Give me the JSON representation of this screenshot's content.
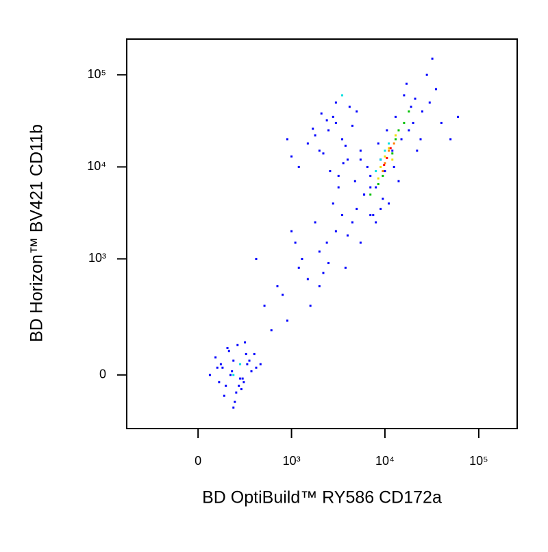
{
  "chart_data": {
    "type": "scatter",
    "xlabel": "BD OptiBuild™ RY586 CD172a",
    "ylabel": "BD Horizon™ BV421 CD11b",
    "xscale": "biexponential",
    "yscale": "biexponential",
    "xlim": [
      -570,
      256800
    ],
    "ylim": [
      -196,
      244700
    ],
    "xticks": [
      0,
      {
        "value": 1000,
        "label": "10³"
      },
      {
        "value": 10000,
        "label": "10⁴"
      },
      {
        "value": 100000,
        "label": "10⁵"
      }
    ],
    "yticks": [
      0,
      {
        "value": 1000,
        "label": "10³"
      },
      {
        "value": 10000,
        "label": "10⁴"
      },
      {
        "value": 100000,
        "label": "10⁵"
      }
    ],
    "series": [
      {
        "color": "#0000ff",
        "x": [
          100,
          150,
          200,
          250,
          300,
          180,
          220,
          120,
          350,
          280,
          90,
          160,
          260,
          310,
          400,
          140,
          230,
          190,
          270,
          330,
          60,
          210,
          170,
          240,
          380,
          130,
          290,
          200,
          450,
          110,
          500,
          700,
          900,
          1200,
          1500,
          2000,
          2500,
          3000,
          800,
          1100,
          1800,
          2200,
          3500,
          4000,
          600,
          1300,
          2800,
          4500,
          5000,
          6000,
          1600,
          2400,
          3200,
          7000,
          400,
          1000,
          2000,
          3800,
          5500,
          8000,
          2000,
          2500,
          3000,
          3500,
          4000,
          1500,
          1200,
          2800,
          3200,
          4500,
          5000,
          1800,
          2200,
          2600,
          3800,
          4200,
          1000,
          900,
          3000,
          2400,
          5500,
          1700,
          3600,
          2100,
          4800,
          6000,
          7000,
          8000,
          9000,
          10000,
          12000,
          15000,
          18000,
          20000,
          25000,
          30000,
          40000,
          50000,
          7500,
          11000,
          14000,
          9500,
          13000,
          16000,
          22000,
          8500,
          6500,
          17000,
          28000,
          35000,
          60000,
          5500,
          10500,
          19000,
          24000,
          12500,
          9000,
          7000,
          21000,
          32000
        ],
        "y": [
          20,
          -30,
          40,
          -10,
          60,
          0,
          -50,
          30,
          10,
          -20,
          50,
          80,
          -40,
          30,
          20,
          -60,
          90,
          10,
          -10,
          40,
          0,
          -80,
          70,
          -30,
          60,
          20,
          100,
          -100,
          30,
          -20,
          300,
          500,
          200,
          800,
          600,
          1200,
          900,
          2000,
          400,
          1500,
          2500,
          700,
          3000,
          1800,
          150,
          1000,
          4000,
          2500,
          3500,
          5000,
          300,
          1500,
          6000,
          3000,
          1000,
          2000,
          500,
          800,
          1500,
          2500,
          15000,
          25000,
          30000,
          20000,
          12000,
          18000,
          10000,
          35000,
          8000,
          28000,
          40000,
          22000,
          14000,
          9000,
          17000,
          45000,
          13000,
          20000,
          50000,
          32000,
          15000,
          26000,
          11000,
          38000,
          7000,
          5000,
          8000,
          6000,
          12000,
          9000,
          15000,
          20000,
          25000,
          30000,
          40000,
          50000,
          30000,
          20000,
          3000,
          4000,
          7000,
          4500,
          35000,
          60000,
          15000,
          18000,
          10000,
          80000,
          100000,
          70000,
          35000,
          12000,
          25000,
          45000,
          20000,
          10000,
          3500,
          6000,
          55000,
          150000
        ]
      },
      {
        "color": "#00e0e0",
        "x": [
          8000,
          9000,
          10000,
          11000,
          200,
          250,
          3500
        ],
        "y": [
          9000,
          12000,
          15000,
          18000,
          0,
          30,
          60000
        ]
      },
      {
        "color": "#00c000",
        "x": [
          12000,
          14000,
          16000,
          9500,
          8500,
          13000,
          18000,
          7000
        ],
        "y": [
          14000,
          25000,
          30000,
          8000,
          6500,
          20000,
          40000,
          5000
        ]
      },
      {
        "color": "#f0e000",
        "x": [
          9000,
          10000,
          11000,
          12000,
          13000,
          8500
        ],
        "y": [
          10000,
          13000,
          16000,
          12000,
          22000,
          7500
        ]
      },
      {
        "color": "#ff8000",
        "x": [
          10000,
          11000,
          12500,
          9500
        ],
        "y": [
          11000,
          15000,
          18000,
          9000
        ]
      },
      {
        "color": "#ff0000",
        "x": [
          10500,
          11500,
          9800
        ],
        "y": [
          12500,
          16000,
          10500
        ]
      }
    ]
  }
}
